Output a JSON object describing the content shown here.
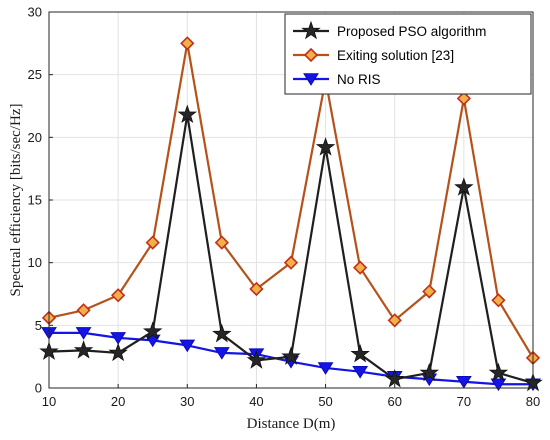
{
  "chart_data": {
    "type": "line",
    "xlabel": "Distance D(m)",
    "ylabel": "Spectral efficiency [bits/sec/Hz]",
    "xlim": [
      10,
      80
    ],
    "ylim": [
      0,
      30
    ],
    "xticks": [
      "10",
      "20",
      "30",
      "40",
      "50",
      "60",
      "70",
      "80"
    ],
    "yticks": [
      "0",
      "5",
      "10",
      "15",
      "20",
      "25",
      "30"
    ],
    "grid": true,
    "legend_position": "top-right",
    "x": [
      10,
      15,
      20,
      25,
      30,
      35,
      40,
      45,
      50,
      55,
      60,
      65,
      70,
      75,
      80
    ],
    "series": [
      {
        "name": "Proposed PSO algorithm",
        "marker": "star",
        "color": "#1f1f1f",
        "values": [
          2.9,
          3.0,
          2.8,
          4.5,
          21.8,
          4.3,
          2.2,
          2.5,
          19.2,
          2.7,
          0.7,
          1.2,
          16.0,
          1.2,
          0.4
        ]
      },
      {
        "name": "Exiting solution [23]",
        "marker": "diamond",
        "color": "#b5521b",
        "values": [
          5.6,
          6.2,
          7.4,
          11.6,
          27.5,
          11.6,
          7.9,
          10.0,
          24.6,
          9.6,
          5.4,
          7.7,
          23.1,
          7.0,
          2.4
        ]
      },
      {
        "name": "No RIS",
        "marker": "triangle-down",
        "color": "#1414e6",
        "values": [
          4.4,
          4.4,
          4.0,
          3.8,
          3.4,
          2.8,
          2.7,
          2.1,
          1.6,
          1.3,
          0.9,
          0.7,
          0.5,
          0.3,
          0.3
        ]
      }
    ]
  }
}
